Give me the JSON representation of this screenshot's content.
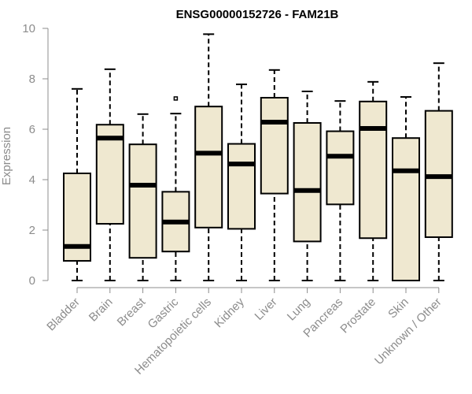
{
  "chart_data": {
    "type": "box",
    "title": "ENSG00000152726 - FAM21B",
    "ylabel": "Expression",
    "ylim": [
      0,
      10
    ],
    "yticks": [
      "0",
      "2",
      "4",
      "6",
      "8",
      "10"
    ],
    "box_fill": "#efe8d0",
    "categories": [
      "Bladder",
      "Brain",
      "Breast",
      "Gastric",
      "Hematopoietic cells",
      "Kidney",
      "Liver",
      "Lung",
      "Pancreas",
      "Prostate",
      "Skin",
      "Unknown / Other"
    ],
    "boxes": [
      {
        "min": 0.0,
        "q1": 0.78,
        "median": 1.35,
        "q3": 4.25,
        "max": 7.6,
        "outliers": []
      },
      {
        "min": 0.0,
        "q1": 2.25,
        "median": 5.65,
        "q3": 6.18,
        "max": 8.38,
        "outliers": []
      },
      {
        "min": 0.0,
        "q1": 0.9,
        "median": 3.78,
        "q3": 5.4,
        "max": 6.6,
        "outliers": []
      },
      {
        "min": 0.0,
        "q1": 1.15,
        "median": 2.32,
        "q3": 3.52,
        "max": 6.62,
        "outliers": [
          7.22
        ]
      },
      {
        "min": 0.0,
        "q1": 2.1,
        "median": 5.05,
        "q3": 6.9,
        "max": 9.77,
        "outliers": []
      },
      {
        "min": 0.0,
        "q1": 2.05,
        "median": 4.62,
        "q3": 5.42,
        "max": 7.78,
        "outliers": []
      },
      {
        "min": 0.0,
        "q1": 3.45,
        "median": 6.28,
        "q3": 7.25,
        "max": 8.35,
        "outliers": []
      },
      {
        "min": 0.0,
        "q1": 1.55,
        "median": 3.57,
        "q3": 6.25,
        "max": 7.5,
        "outliers": []
      },
      {
        "min": 0.0,
        "q1": 3.02,
        "median": 4.93,
        "q3": 5.92,
        "max": 7.12,
        "outliers": []
      },
      {
        "min": 0.0,
        "q1": 1.68,
        "median": 6.03,
        "q3": 7.1,
        "max": 7.88,
        "outliers": []
      },
      {
        "min": 0.0,
        "q1": 0.0,
        "median": 4.35,
        "q3": 5.65,
        "max": 7.28,
        "outliers": []
      },
      {
        "min": 0.0,
        "q1": 1.72,
        "median": 4.12,
        "q3": 6.73,
        "max": 8.62,
        "outliers": []
      }
    ]
  }
}
